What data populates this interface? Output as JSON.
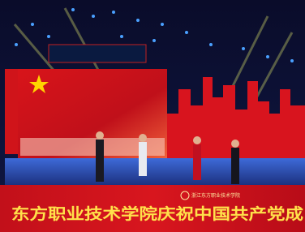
{
  "banner": {
    "text": "东方职业技术学院庆祝中国共产党成"
  },
  "logo": {
    "name": "浙江东方职业技术学院"
  }
}
